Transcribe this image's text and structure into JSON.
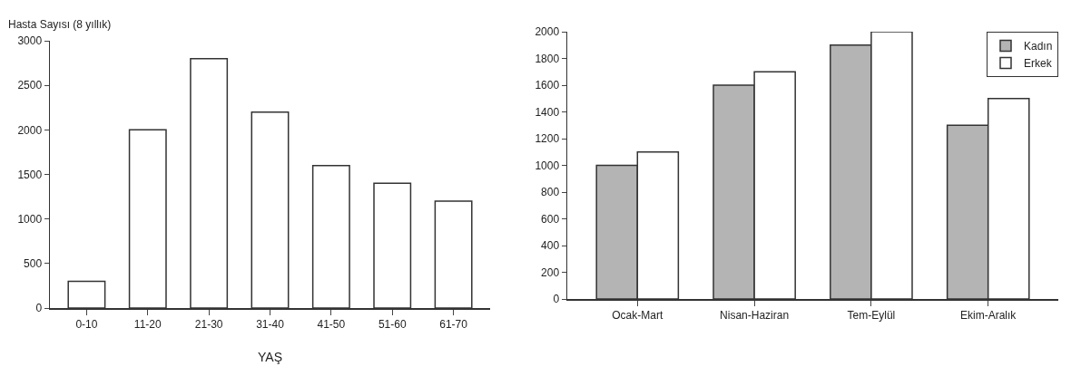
{
  "chart_data": [
    {
      "type": "bar",
      "ylabel": "Hasta Sayısı (8 yıllık)",
      "xlabel": "YAŞ",
      "categories": [
        "0-10",
        "11-20",
        "21-30",
        "31-40",
        "41-50",
        "51-60",
        "61-70"
      ],
      "values": [
        300,
        2000,
        2800,
        2200,
        1600,
        1400,
        1200
      ],
      "color": "#ffffff",
      "ylim": [
        0,
        3000
      ],
      "yticks": [
        0,
        500,
        1000,
        1500,
        2000,
        2500,
        3000
      ],
      "grid": false,
      "legend": false
    },
    {
      "type": "bar",
      "categories": [
        "Ocak-Mart",
        "Nisan-Haziran",
        "Tem-Eylül",
        "Ekim-Aralık"
      ],
      "series": [
        {
          "name": "Kadın",
          "color": "#b4b4b4",
          "values": [
            1000,
            1600,
            1900,
            1300
          ]
        },
        {
          "name": "Erkek",
          "color": "#ffffff",
          "values": [
            1100,
            1700,
            2000,
            1500
          ]
        }
      ],
      "ylim": [
        0,
        2000
      ],
      "yticks": [
        0,
        200,
        400,
        600,
        800,
        1000,
        1200,
        1400,
        1600,
        1800,
        2000
      ],
      "grid": false,
      "legend": "top right"
    }
  ]
}
